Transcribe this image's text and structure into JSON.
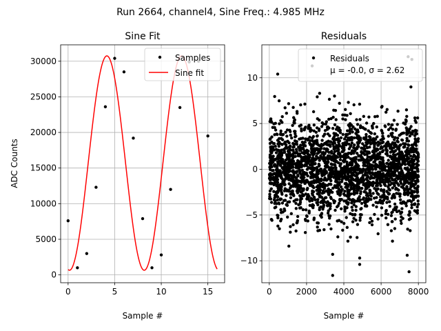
{
  "suptitle": "Run 2664, channel4, Sine Freq.: 4.985 MHz",
  "chart_data": [
    {
      "type": "scatter",
      "title": "Sine Fit",
      "xlabel": "Sample #",
      "ylabel": "ADC Counts",
      "xlim": [
        -0.8,
        16.8
      ],
      "ylim": [
        -1100,
        32300
      ],
      "xticks": [
        0,
        5,
        10,
        15
      ],
      "yticks": [
        0,
        5000,
        10000,
        15000,
        20000,
        25000,
        30000
      ],
      "grid": true,
      "legend": "upper right",
      "series": [
        {
          "name": "Samples",
          "marker": "dot",
          "color": "#000000",
          "x": [
            0,
            1,
            2,
            3,
            4,
            5,
            6,
            7,
            8,
            9,
            10,
            11,
            12,
            13,
            14,
            15
          ],
          "y": [
            7600,
            1000,
            3000,
            12300,
            23600,
            30400,
            28500,
            19200,
            7900,
            1000,
            2800,
            12000,
            23500,
            29900,
            30000,
            19500
          ]
        },
        {
          "name": "Sine fit",
          "line": true,
          "color": "#ff0000",
          "model": {
            "offset": 15700,
            "amplitude": 15050,
            "period": 8.02,
            "phase": -1.69,
            "x_range": [
              0,
              16
            ]
          }
        }
      ]
    },
    {
      "type": "scatter",
      "title": "Residuals",
      "xlabel": "Sample #",
      "ylabel": "",
      "xlim": [
        -400,
        8400
      ],
      "ylim": [
        -12.4,
        13.6
      ],
      "xticks": [
        0,
        2000,
        4000,
        6000,
        8000
      ],
      "yticks": [
        -10,
        -5,
        0,
        5,
        10
      ],
      "grid": true,
      "legend": "upper right",
      "legend_lines": [
        "Residuals",
        "μ = -0.0, σ = 2.62"
      ],
      "series": [
        {
          "name": "Residuals",
          "marker": "dot",
          "color": "#000000",
          "n_points": 8000,
          "mean": -0.0,
          "std": 2.62,
          "outliers": [
            {
              "x": 3400,
              "y": -11.6
            },
            {
              "x": 7500,
              "y": -11.2
            },
            {
              "x": 4850,
              "y": -10.4
            },
            {
              "x": 4850,
              "y": -9.7
            },
            {
              "x": 3400,
              "y": -9.3
            },
            {
              "x": 7400,
              "y": -9.4
            },
            {
              "x": 1050,
              "y": -8.4
            },
            {
              "x": 2300,
              "y": 11.3
            },
            {
              "x": 7450,
              "y": 12.3
            },
            {
              "x": 7650,
              "y": 12.0
            },
            {
              "x": 450,
              "y": 10.4
            },
            {
              "x": 2700,
              "y": 8.3
            },
            {
              "x": 7600,
              "y": 9.0
            },
            {
              "x": 3500,
              "y": 8.0
            }
          ]
        }
      ]
    }
  ]
}
